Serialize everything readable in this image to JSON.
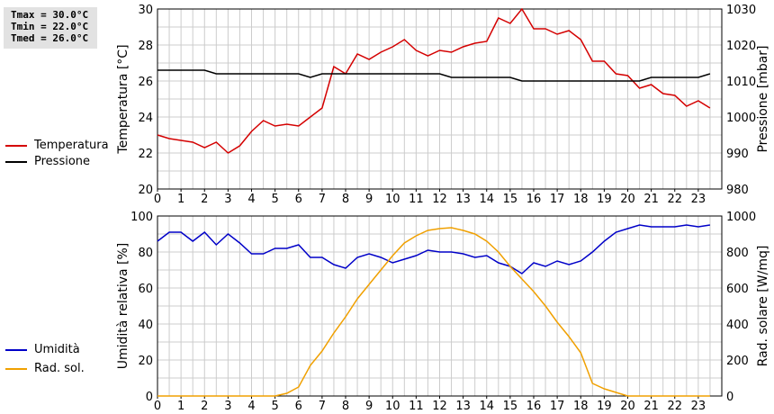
{
  "stats": {
    "tmax": "Tmax = 30.0°C",
    "tmin": "Tmin = 22.0°C",
    "tmed": "Tmed = 26.0°C"
  },
  "colors": {
    "temperature": "#d40000",
    "pressure": "#000000",
    "humidity": "#0000c8",
    "radiation": "#f0a000",
    "grid": "#cccccc"
  },
  "chart_data": [
    {
      "type": "line",
      "ylabel": "Temperatura [°C]",
      "y2label": "Pressione [mbar]",
      "ylim": [
        20,
        30
      ],
      "y2lim": [
        980,
        1030
      ],
      "yticks": [
        "20",
        "22",
        "24",
        "26",
        "28",
        "30"
      ],
      "y2ticks": [
        "980",
        "990",
        "1000",
        "1010",
        "1020",
        "1030"
      ],
      "xticks": [
        "0",
        "1",
        "2",
        "3",
        "4",
        "5",
        "6",
        "7",
        "8",
        "9",
        "10",
        "11",
        "12",
        "13",
        "14",
        "15",
        "16",
        "17",
        "18",
        "19",
        "20",
        "21",
        "22",
        "23"
      ],
      "grid": true,
      "legend": "left",
      "series": [
        {
          "name": "Temperatura",
          "axis": "left",
          "x": [
            0,
            0.5,
            1,
            1.5,
            2,
            2.5,
            3,
            3.5,
            4,
            4.5,
            5,
            5.5,
            6,
            6.5,
            7,
            7.5,
            8,
            8.5,
            9,
            9.5,
            10,
            10.5,
            11,
            11.5,
            12,
            12.5,
            13,
            13.5,
            14,
            14.5,
            15,
            15.5,
            16,
            16.5,
            17,
            17.5,
            18,
            18.5,
            19,
            19.5,
            20,
            20.5,
            21,
            21.5,
            22,
            22.5,
            23,
            23.5
          ],
          "values": [
            23.0,
            22.8,
            22.7,
            22.6,
            22.3,
            22.6,
            22.0,
            22.4,
            23.2,
            23.8,
            23.5,
            23.6,
            23.5,
            24.0,
            24.5,
            26.8,
            26.4,
            27.5,
            27.2,
            27.6,
            27.9,
            28.3,
            27.7,
            27.4,
            27.7,
            27.6,
            27.9,
            28.1,
            28.2,
            29.5,
            29.2,
            30.0,
            28.9,
            28.9,
            28.6,
            28.8,
            28.3,
            27.1,
            27.1,
            26.4,
            26.3,
            25.6,
            25.8,
            25.3,
            25.2,
            24.6,
            24.9,
            24.5
          ]
        },
        {
          "name": "Pressione",
          "axis": "right",
          "x": [
            0,
            0.5,
            1,
            1.5,
            2,
            2.5,
            3,
            3.5,
            4,
            4.5,
            5,
            5.5,
            6,
            6.5,
            7,
            7.5,
            8,
            8.5,
            9,
            9.5,
            10,
            10.5,
            11,
            11.5,
            12,
            12.5,
            13,
            13.5,
            14,
            14.5,
            15,
            15.5,
            16,
            16.5,
            17,
            17.5,
            18,
            18.5,
            19,
            19.5,
            20,
            20.5,
            21,
            21.5,
            22,
            22.5,
            23,
            23.5
          ],
          "values": [
            1013,
            1013,
            1013,
            1013,
            1013,
            1012,
            1012,
            1012,
            1012,
            1012,
            1012,
            1012,
            1012,
            1011,
            1012,
            1012,
            1012,
            1012,
            1012,
            1012,
            1012,
            1012,
            1012,
            1012,
            1012,
            1011,
            1011,
            1011,
            1011,
            1011,
            1011,
            1010,
            1010,
            1010,
            1010,
            1010,
            1010,
            1010,
            1010,
            1010,
            1010,
            1010,
            1011,
            1011,
            1011,
            1011,
            1011,
            1012
          ]
        }
      ]
    },
    {
      "type": "line",
      "ylabel": "Umidità relativa [%]",
      "y2label": "Rad. solare [W/mq]",
      "ylim": [
        0,
        100
      ],
      "y2lim": [
        0,
        1000
      ],
      "yticks": [
        "0",
        "20",
        "40",
        "60",
        "80",
        "100"
      ],
      "y2ticks": [
        "0",
        "200",
        "400",
        "600",
        "800",
        "1000"
      ],
      "xticks": [
        "0",
        "1",
        "2",
        "3",
        "4",
        "5",
        "6",
        "7",
        "8",
        "9",
        "10",
        "11",
        "12",
        "13",
        "14",
        "15",
        "16",
        "17",
        "18",
        "19",
        "20",
        "21",
        "22",
        "23"
      ],
      "grid": true,
      "legend": "left",
      "series": [
        {
          "name": "Umidità",
          "axis": "left",
          "x": [
            0,
            0.5,
            1,
            1.5,
            2,
            2.5,
            3,
            3.5,
            4,
            4.5,
            5,
            5.5,
            6,
            6.5,
            7,
            7.5,
            8,
            8.5,
            9,
            9.5,
            10,
            10.5,
            11,
            11.5,
            12,
            12.5,
            13,
            13.5,
            14,
            14.5,
            15,
            15.5,
            16,
            16.5,
            17,
            17.5,
            18,
            18.5,
            19,
            19.5,
            20,
            20.5,
            21,
            21.5,
            22,
            22.5,
            23,
            23.5
          ],
          "values": [
            86,
            91,
            91,
            86,
            91,
            84,
            90,
            85,
            79,
            79,
            82,
            82,
            84,
            77,
            77,
            73,
            71,
            77,
            79,
            77,
            74,
            76,
            78,
            81,
            80,
            80,
            79,
            77,
            78,
            74,
            72,
            68,
            74,
            72,
            75,
            73,
            75,
            80,
            86,
            91,
            93,
            95,
            94,
            94,
            94,
            95,
            94,
            95
          ]
        },
        {
          "name": "Rad. sol.",
          "axis": "right",
          "x": [
            0,
            0.5,
            1,
            1.5,
            2,
            2.5,
            3,
            3.5,
            4,
            4.5,
            5,
            5.5,
            6,
            6.5,
            7,
            7.5,
            8,
            8.5,
            9,
            9.5,
            10,
            10.5,
            11,
            11.5,
            12,
            12.5,
            13,
            13.5,
            14,
            14.5,
            15,
            15.5,
            16,
            16.5,
            17,
            17.5,
            18,
            18.5,
            19,
            19.5,
            20,
            20.5,
            21,
            21.5,
            22,
            22.5,
            23,
            23.5
          ],
          "values": [
            0,
            0,
            0,
            0,
            0,
            0,
            0,
            0,
            0,
            0,
            0,
            15,
            50,
            170,
            250,
            350,
            440,
            540,
            620,
            700,
            780,
            850,
            890,
            920,
            930,
            935,
            920,
            900,
            860,
            800,
            720,
            650,
            580,
            500,
            410,
            330,
            240,
            70,
            40,
            20,
            0,
            0,
            0,
            0,
            0,
            0,
            0,
            0
          ]
        }
      ]
    }
  ]
}
